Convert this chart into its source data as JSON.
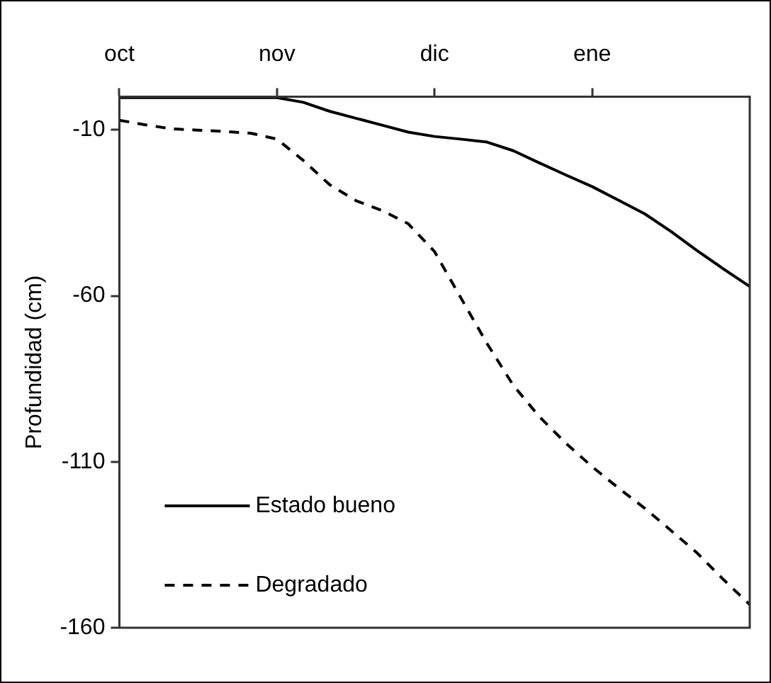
{
  "chart_data": {
    "type": "line",
    "ylabel": "Profundidad (cm)",
    "categories": [
      "oct",
      null,
      null,
      null,
      null,
      null,
      "nov",
      null,
      null,
      null,
      null,
      null,
      "dic",
      null,
      null,
      null,
      null,
      null,
      "ene",
      null,
      null,
      null,
      null,
      null,
      null
    ],
    "ylim": [
      -160,
      0
    ],
    "yticks": [
      -10,
      -60,
      -110,
      -160
    ],
    "grid": false,
    "legend": "bottom left",
    "marker": "none",
    "series": [
      {
        "name": "Estado bueno",
        "color": "#000000",
        "line_style": "solid",
        "values": [
          -0.3,
          -0.3,
          -0.3,
          -0.3,
          -0.3,
          -0.3,
          -0.3,
          -1.7,
          -4.4,
          -6.5,
          -8.6,
          -10.7,
          -12.0,
          -12.8,
          -13.7,
          -16.3,
          -20.0,
          -23.6,
          -27.1,
          -31.2,
          -35.3,
          -40.6,
          -46.4,
          -51.9,
          -57.2
        ]
      },
      {
        "name": "Degradado",
        "color": "#000000",
        "line_style": "dashed",
        "values": [
          -7.1,
          -8.5,
          -9.7,
          -10.1,
          -10.5,
          -11.0,
          -12.8,
          -19.2,
          -26.5,
          -31.3,
          -34.3,
          -38.3,
          -46.7,
          -60.6,
          -74.4,
          -87.0,
          -96.5,
          -104.4,
          -111.5,
          -117.9,
          -124.0,
          -130.7,
          -137.5,
          -145.5,
          -153
        ]
      }
    ]
  }
}
